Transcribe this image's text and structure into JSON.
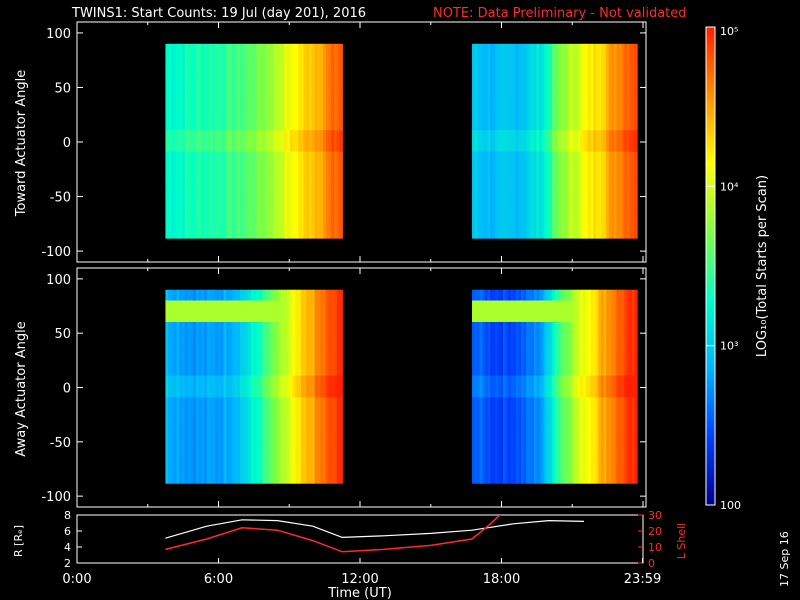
{
  "colors": {
    "background": "#000000",
    "axis": "#ffffff",
    "note": "#ff2a2a",
    "r_line": "#ffffff",
    "lshell_line": "#ff2a2a"
  },
  "header": {
    "title": "TWINS1: Start Counts: 19 Jul (day 201), 2016",
    "note": "NOTE: Data Preliminary - Not validated"
  },
  "footer": {
    "date_stamp": "17 Sep 16"
  },
  "colorbar": {
    "label": "LOG₁₀(Total Starts per Scan)",
    "tick_labels": [
      "100",
      "10³",
      "10⁴",
      "10⁵"
    ],
    "tick_values": [
      100,
      1000,
      10000,
      100000
    ],
    "range": [
      100,
      100000
    ],
    "stops": [
      "#00008a",
      "#0040ff",
      "#00b4ff",
      "#00ffc8",
      "#80ff40",
      "#ffff00",
      "#ff9000",
      "#ff2000"
    ]
  },
  "chart_data": [
    {
      "type": "heatmap",
      "name": "toward",
      "ylabel": "Toward Actuator Angle",
      "xlabel": "",
      "xlim": [
        0,
        24
      ],
      "ylim": [
        -110,
        110
      ],
      "yticks": [
        100,
        50,
        0,
        -50,
        -100
      ],
      "ytick_labels": [
        "100",
        "50",
        "0",
        "-50",
        "-100"
      ],
      "angle_range": [
        -88,
        90
      ],
      "blocks": [
        {
          "t_start": 3.75,
          "t_end": 11.25,
          "profile": [
            0.42,
            0.43,
            0.44,
            0.45,
            0.46,
            0.47,
            0.49,
            0.51,
            0.54,
            0.58,
            0.63,
            0.68,
            0.73,
            0.78,
            0.83,
            0.88,
            0.93
          ]
        },
        {
          "t_start": 16.75,
          "t_end": 23.75,
          "profile": [
            0.32,
            0.31,
            0.3,
            0.3,
            0.31,
            0.33,
            0.36,
            0.4,
            0.52,
            0.6,
            0.65,
            0.7,
            0.75,
            0.8,
            0.86,
            0.92,
            0.96
          ]
        }
      ]
    },
    {
      "type": "heatmap",
      "name": "away",
      "ylabel": "Away Actuator Angle",
      "xlabel": "",
      "xlim": [
        0,
        24
      ],
      "ylim": [
        -110,
        110
      ],
      "yticks": [
        100,
        50,
        0,
        -50,
        -100
      ],
      "ytick_labels": [
        "100",
        "50",
        "0",
        "-50",
        "-100"
      ],
      "angle_range": [
        -88,
        90
      ],
      "blocks": [
        {
          "t_start": 3.75,
          "t_end": 11.25,
          "profile": [
            0.3,
            0.28,
            0.26,
            0.25,
            0.25,
            0.27,
            0.3,
            0.34,
            0.4,
            0.48,
            0.56,
            0.64,
            0.72,
            0.8,
            0.87,
            0.93,
            0.97
          ]
        },
        {
          "t_start": 16.75,
          "t_end": 23.75,
          "profile": [
            0.2,
            0.17,
            0.15,
            0.15,
            0.16,
            0.18,
            0.22,
            0.28,
            0.45,
            0.55,
            0.63,
            0.7,
            0.77,
            0.84,
            0.9,
            0.95,
            0.98
          ]
        }
      ]
    },
    {
      "type": "line",
      "name": "orbit",
      "ylabel": "R [Rₑ]",
      "y2label": "L Shell",
      "xlabel": "Time (UT)",
      "xlim": [
        0,
        24
      ],
      "ylim": [
        2,
        8
      ],
      "y2lim": [
        0,
        30
      ],
      "yticks": [
        2,
        4,
        6,
        8
      ],
      "ytick_labels": [
        "2",
        "4",
        "6",
        "8"
      ],
      "y2ticks": [
        0,
        10,
        20,
        30
      ],
      "y2tick_labels": [
        "0",
        "10",
        "20",
        "30"
      ],
      "xticks": [
        0,
        6,
        12,
        18,
        23.98
      ],
      "xtick_labels": [
        "0:00",
        "6:00",
        "12:00",
        "18:00",
        "23:59"
      ],
      "series": [
        {
          "name": "R",
          "axis": "left",
          "x": [
            3.75,
            5.5,
            7.0,
            8.5,
            10.0,
            11.25,
            13.0,
            15.0,
            16.75,
            18.5,
            20.0,
            21.5
          ],
          "y": [
            5.1,
            6.6,
            7.4,
            7.3,
            6.6,
            5.2,
            5.4,
            5.7,
            6.1,
            6.9,
            7.3,
            7.2
          ]
        },
        {
          "name": "L Shell",
          "axis": "right",
          "x": [
            3.75,
            5.5,
            7.0,
            8.5,
            10.0,
            11.25,
            13.0,
            15.0,
            16.75,
            17.5,
            18.0
          ],
          "y": [
            8.5,
            15.0,
            22.0,
            20.5,
            14.0,
            7.0,
            8.5,
            11.0,
            15.0,
            24.0,
            31.0
          ]
        }
      ]
    }
  ]
}
